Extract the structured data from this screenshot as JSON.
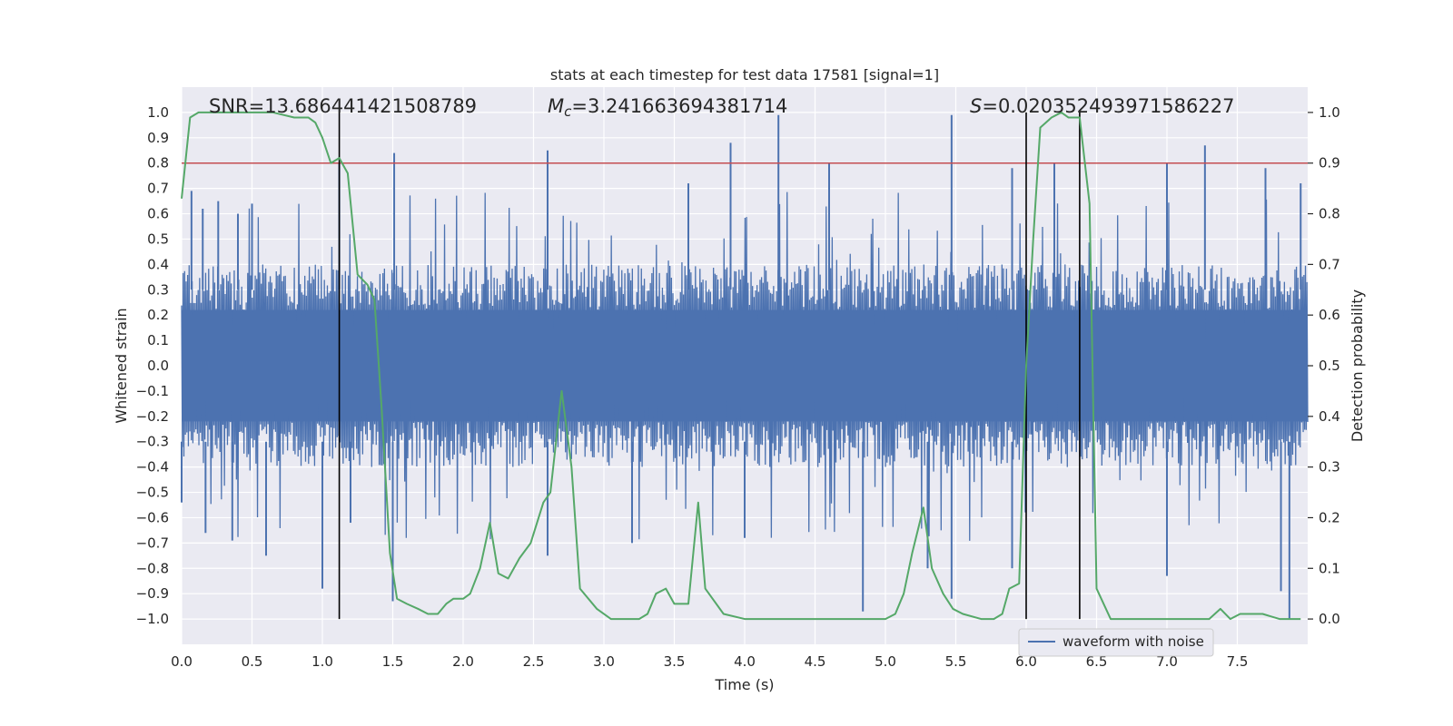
{
  "chart_data": {
    "type": "line",
    "title": "stats at each timestep for test data 17581 [signal=1]",
    "xlabel": "Time (s)",
    "ylabel_left": "Whitened strain",
    "ylabel_right": "Detection probability",
    "xlim": [
      0,
      8
    ],
    "ylim_left": [
      -1.1,
      1.1
    ],
    "ylim_right": [
      -0.05,
      1.05
    ],
    "x_ticks": [
      "0.0",
      "0.5",
      "1.0",
      "1.5",
      "2.0",
      "2.5",
      "3.0",
      "3.5",
      "4.0",
      "4.5",
      "5.0",
      "5.5",
      "6.0",
      "6.5",
      "7.0",
      "7.5"
    ],
    "y_ticks_left": [
      "1.0",
      "0.9",
      "0.8",
      "0.7",
      "0.6",
      "0.5",
      "0.4",
      "0.3",
      "0.2",
      "0.1",
      "0.0",
      "−0.1",
      "−0.2",
      "−0.3",
      "−0.4",
      "−0.5",
      "−0.6",
      "−0.7",
      "−0.8",
      "−0.9",
      "−1.0"
    ],
    "y_ticks_right": [
      "1.0",
      "0.9",
      "0.8",
      "0.7",
      "0.6",
      "0.5",
      "0.4",
      "0.3",
      "0.2",
      "0.1",
      "0.0"
    ],
    "grid": true,
    "legend": {
      "entries": [
        "waveform with noise"
      ],
      "position": "lower-right"
    },
    "annotations": {
      "snr": "SNR=13.686441421508789",
      "mc_symbol": "M",
      "mc_sub": "c",
      "mc_value": "=3.241663694381714",
      "s_symbol": "S",
      "s_value": "=0.020352493971586227"
    },
    "threshold_line": {
      "y_right": 0.9,
      "color": "#c44e52"
    },
    "vertical_lines": [
      1.12,
      6.0,
      6.38
    ],
    "series": [
      {
        "name": "waveform with noise",
        "axis": "left",
        "color": "#4c72b0",
        "x_range": [
          0,
          8
        ],
        "envelope_typical": 0.4,
        "peaks": [
          {
            "x": 0.07,
            "y": 0.69
          },
          {
            "x": 0.15,
            "y": 0.62
          },
          {
            "x": 0.26,
            "y": 0.65
          },
          {
            "x": 0.4,
            "y": 0.6
          },
          {
            "x": 0.5,
            "y": 0.64
          },
          {
            "x": 1.12,
            "y": 0.8
          },
          {
            "x": 1.51,
            "y": 0.84
          },
          {
            "x": 2.6,
            "y": 0.85
          },
          {
            "x": 3.6,
            "y": 0.72
          },
          {
            "x": 3.9,
            "y": 0.88
          },
          {
            "x": 4.24,
            "y": 0.99
          },
          {
            "x": 4.6,
            "y": 0.8
          },
          {
            "x": 5.47,
            "y": 0.99
          },
          {
            "x": 5.9,
            "y": 0.78
          },
          {
            "x": 6.2,
            "y": 0.8
          },
          {
            "x": 7.0,
            "y": 0.8
          },
          {
            "x": 7.27,
            "y": 0.87
          },
          {
            "x": 7.7,
            "y": 0.78
          },
          {
            "x": 7.95,
            "y": 0.72
          }
        ],
        "troughs": [
          {
            "x": 0.0,
            "y": -0.54
          },
          {
            "x": 0.17,
            "y": -0.66
          },
          {
            "x": 0.36,
            "y": -0.69
          },
          {
            "x": 0.6,
            "y": -0.75
          },
          {
            "x": 1.0,
            "y": -0.88
          },
          {
            "x": 1.2,
            "y": -0.62
          },
          {
            "x": 1.5,
            "y": -0.93
          },
          {
            "x": 2.6,
            "y": -0.75
          },
          {
            "x": 3.2,
            "y": -0.7
          },
          {
            "x": 4.0,
            "y": -0.68
          },
          {
            "x": 4.84,
            "y": -0.97
          },
          {
            "x": 5.3,
            "y": -0.8
          },
          {
            "x": 5.47,
            "y": -0.92
          },
          {
            "x": 5.9,
            "y": -0.8
          },
          {
            "x": 7.0,
            "y": -0.83
          },
          {
            "x": 7.81,
            "y": -0.89
          },
          {
            "x": 7.87,
            "y": -1.0
          }
        ]
      },
      {
        "name": "",
        "axis": "right",
        "color": "#55a868",
        "x": [
          0.0,
          0.06,
          0.12,
          0.3,
          0.5,
          0.65,
          0.8,
          0.9,
          0.95,
          1.0,
          1.06,
          1.12,
          1.18,
          1.25,
          1.32,
          1.37,
          1.42,
          1.48,
          1.53,
          1.6,
          1.68,
          1.75,
          1.82,
          1.88,
          1.93,
          2.0,
          2.05,
          2.12,
          2.19,
          2.25,
          2.32,
          2.4,
          2.48,
          2.57,
          2.62,
          2.7,
          2.77,
          2.83,
          2.95,
          3.05,
          3.18,
          3.25,
          3.31,
          3.37,
          3.44,
          3.5,
          3.6,
          3.67,
          3.72,
          3.85,
          4.0,
          4.2,
          4.5,
          4.8,
          5.0,
          5.07,
          5.13,
          5.19,
          5.27,
          5.33,
          5.41,
          5.48,
          5.55,
          5.68,
          5.77,
          5.83,
          5.88,
          5.95,
          6.0,
          6.05,
          6.1,
          6.18,
          6.25,
          6.3,
          6.38,
          6.45,
          6.5,
          6.6,
          6.8,
          7.0,
          7.1,
          7.2,
          7.3,
          7.38,
          7.45,
          7.52,
          7.6,
          7.68,
          7.8,
          7.95
        ],
        "y": [
          0.83,
          0.99,
          1.0,
          1.0,
          1.0,
          1.0,
          0.99,
          0.99,
          0.98,
          0.95,
          0.9,
          0.91,
          0.88,
          0.68,
          0.66,
          0.63,
          0.42,
          0.13,
          0.04,
          0.03,
          0.02,
          0.01,
          0.01,
          0.03,
          0.04,
          0.04,
          0.05,
          0.1,
          0.19,
          0.09,
          0.08,
          0.12,
          0.15,
          0.23,
          0.25,
          0.45,
          0.3,
          0.06,
          0.02,
          0.0,
          0.0,
          0.0,
          0.01,
          0.05,
          0.06,
          0.03,
          0.03,
          0.23,
          0.06,
          0.01,
          0.0,
          0.0,
          0.0,
          0.0,
          0.0,
          0.01,
          0.05,
          0.13,
          0.22,
          0.1,
          0.05,
          0.02,
          0.01,
          0.0,
          0.0,
          0.01,
          0.06,
          0.07,
          0.5,
          0.75,
          0.97,
          0.99,
          1.0,
          0.99,
          0.99,
          0.82,
          0.06,
          0.0,
          0.0,
          0.0,
          0.0,
          0.0,
          0.0,
          0.02,
          0.0,
          0.01,
          0.01,
          0.01,
          0.0,
          0.0
        ]
      }
    ]
  }
}
